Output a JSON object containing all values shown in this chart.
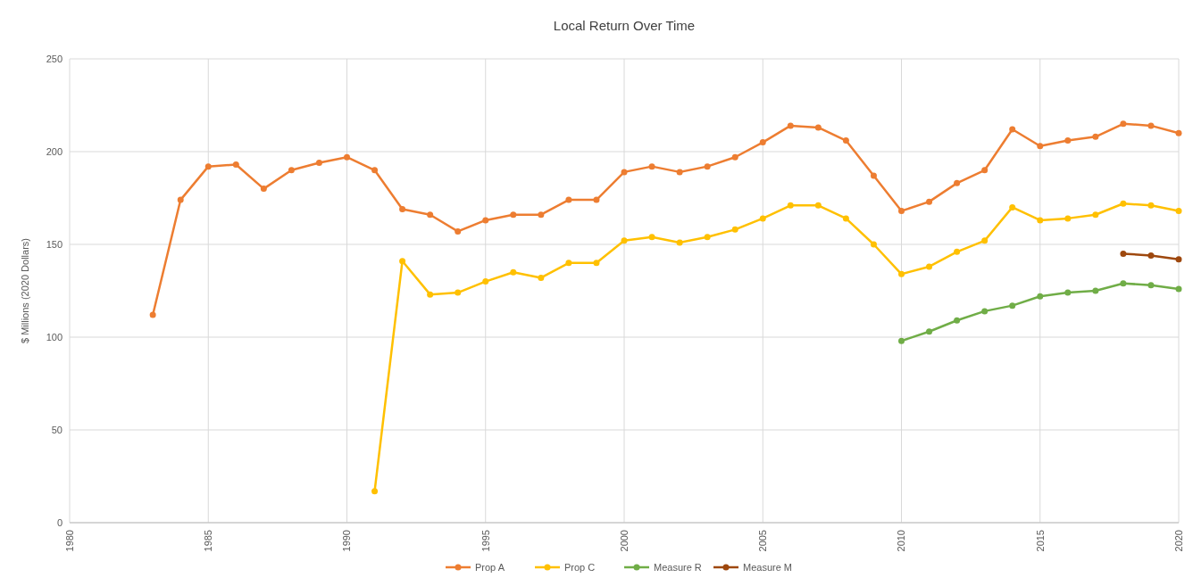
{
  "chart_data": {
    "type": "line",
    "title": "Local Return Over Time",
    "ylabel": "$ Millions  (2020 Dollars)",
    "xlim": [
      1980,
      2020
    ],
    "xticks": [
      1980,
      1985,
      1990,
      1995,
      2000,
      2005,
      2010,
      2015,
      2020
    ],
    "ylim": [
      0,
      250
    ],
    "yticks": [
      0,
      50,
      100,
      150,
      200,
      250
    ],
    "grid": true,
    "legend": "bottom",
    "marker": "circle",
    "line_style": "solid",
    "series": [
      {
        "name": "Prop A",
        "color": "#ed7d31",
        "x": [
          1983,
          1984,
          1985,
          1986,
          1987,
          1988,
          1989,
          1990,
          1991,
          1992,
          1993,
          1994,
          1995,
          1996,
          1997,
          1998,
          1999,
          2000,
          2001,
          2002,
          2003,
          2004,
          2005,
          2006,
          2007,
          2008,
          2009,
          2010,
          2011,
          2012,
          2013,
          2014,
          2015,
          2016,
          2017,
          2018,
          2019,
          2020
        ],
        "values": [
          112,
          174,
          192,
          193,
          180,
          190,
          194,
          197,
          190,
          169,
          166,
          157,
          163,
          166,
          166,
          174,
          174,
          189,
          192,
          189,
          192,
          197,
          205,
          214,
          213,
          206,
          187,
          168,
          173,
          183,
          190,
          212,
          203,
          206,
          208,
          215,
          214,
          210
        ]
      },
      {
        "name": "Prop C",
        "color": "#ffc000",
        "x": [
          1991,
          1992,
          1993,
          1994,
          1995,
          1996,
          1997,
          1998,
          1999,
          2000,
          2001,
          2002,
          2003,
          2004,
          2005,
          2006,
          2007,
          2008,
          2009,
          2010,
          2011,
          2012,
          2013,
          2014,
          2015,
          2016,
          2017,
          2018,
          2019,
          2020
        ],
        "values": [
          17,
          141,
          123,
          124,
          130,
          135,
          132,
          140,
          140,
          152,
          154,
          151,
          154,
          158,
          164,
          171,
          171,
          164,
          150,
          134,
          138,
          146,
          152,
          170,
          163,
          164,
          166,
          172,
          171,
          168
        ]
      },
      {
        "name": "Measure R",
        "color": "#70ad47",
        "x": [
          2010,
          2011,
          2012,
          2013,
          2014,
          2015,
          2016,
          2017,
          2018,
          2019,
          2020
        ],
        "values": [
          98,
          103,
          109,
          114,
          117,
          122,
          124,
          125,
          129,
          128,
          126
        ]
      },
      {
        "name": "Measure M",
        "color": "#9e480e",
        "x": [
          2018,
          2019,
          2020
        ],
        "values": [
          145,
          144,
          142
        ]
      }
    ]
  }
}
